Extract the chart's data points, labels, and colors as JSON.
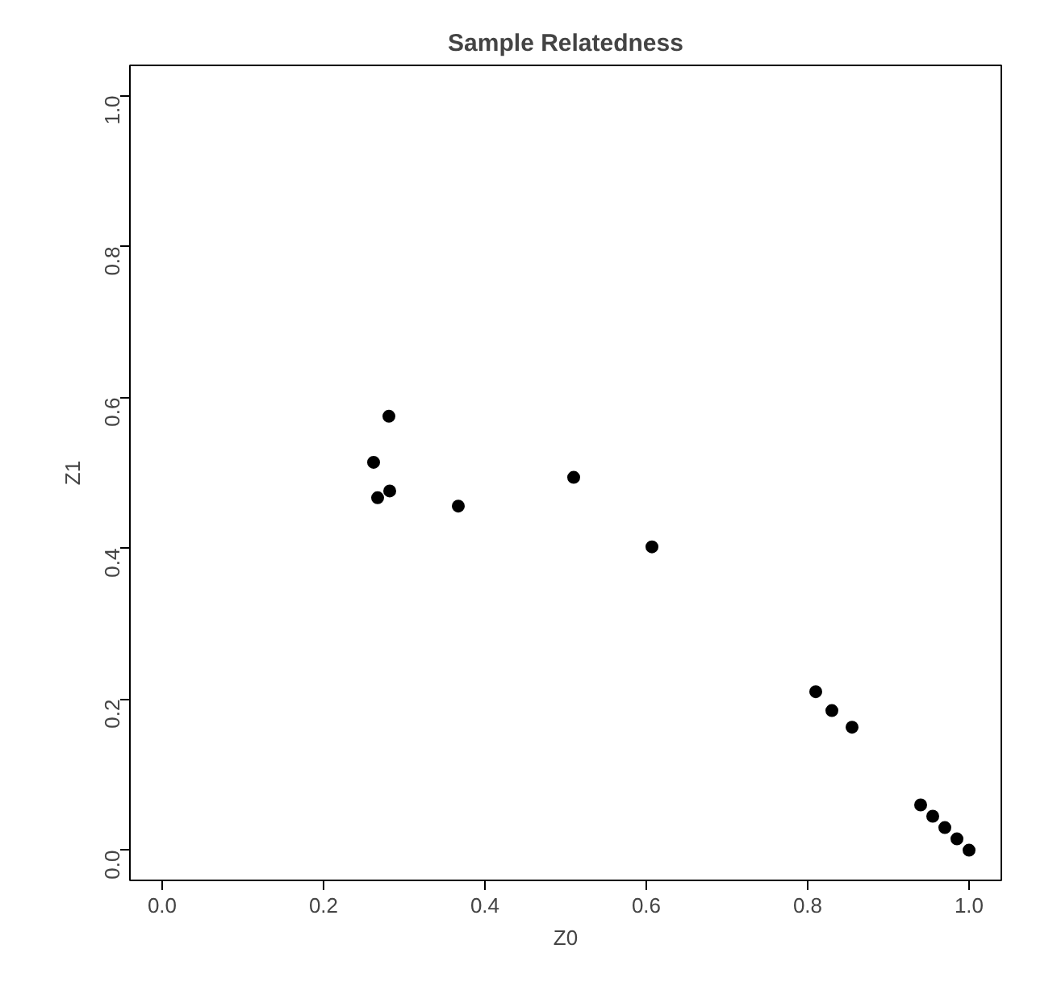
{
  "chart_data": {
    "type": "scatter",
    "title": "Sample Relatedness",
    "xlabel": "Z0",
    "ylabel": "Z1",
    "x": [
      0.281,
      0.262,
      0.267,
      0.282,
      0.367,
      0.51,
      0.607,
      0.81,
      0.83,
      0.855,
      0.94,
      0.955,
      0.97,
      0.985,
      1.0
    ],
    "series": [
      {
        "color": "#000000",
        "values": [
          0.575,
          0.514,
          0.467,
          0.476,
          0.456,
          0.494,
          0.402,
          0.21,
          0.185,
          0.163,
          0.06,
          0.045,
          0.03,
          0.015,
          0.0
        ]
      }
    ],
    "xlim": [
      -0.04,
      1.04
    ],
    "ylim": [
      -0.04,
      1.04
    ],
    "xticks": [
      {
        "value": 0,
        "label": "0.0"
      },
      0.2,
      0.4,
      0.6,
      0.8,
      {
        "value": 1,
        "label": "1.0"
      }
    ],
    "yticks": [
      {
        "value": 0,
        "label": "0.0"
      },
      0.2,
      0.4,
      0.6,
      0.8,
      {
        "value": 1,
        "label": "1.0"
      }
    ],
    "grid": false,
    "marker": "circle"
  }
}
